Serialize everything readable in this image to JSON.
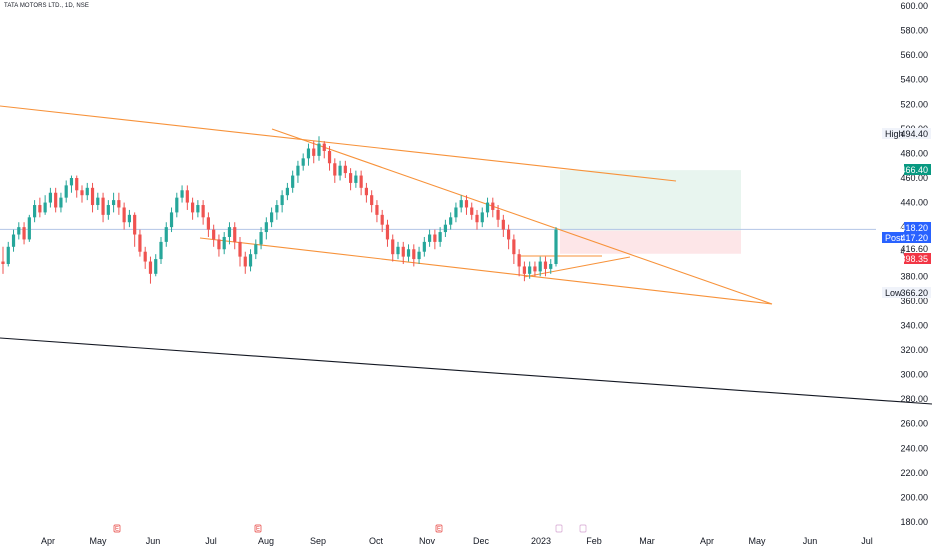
{
  "header": {
    "symbol_title": "TATA MOTORS LTD., 1D, NSE"
  },
  "colors": {
    "up": "#26a69a",
    "down": "#ef5350",
    "trendline": "#f7923a",
    "long_line": "#131722",
    "profit_zone": "#e8f5ef",
    "loss_zone": "#fde6e8",
    "price_line": "#b2c5e6"
  },
  "chart_data": {
    "type": "candlestick",
    "title": "TATA MOTORS LTD., 1D, NSE",
    "ylim": [
      180,
      600
    ],
    "y_ticks": [
      "600.00",
      "580.00",
      "560.00",
      "540.00",
      "520.00",
      "500.00",
      "480.00",
      "460.00",
      "440.00",
      "420.00",
      "400.00",
      "380.00",
      "360.00",
      "340.00",
      "320.00",
      "300.00",
      "280.00",
      "260.00",
      "240.00",
      "220.00",
      "200.00",
      "180.00"
    ],
    "x_labels": [
      "Apr",
      "May",
      "Jun",
      "Jul",
      "Aug",
      "Sep",
      "Oct",
      "Nov",
      "Dec",
      "2023",
      "Feb",
      "Mar",
      "Apr",
      "May",
      "Jun",
      "Jul"
    ],
    "price_tags": [
      {
        "label": "High",
        "value": "494.40",
        "style": "plain"
      },
      {
        "label": "",
        "value": "466.40",
        "style": "green"
      },
      {
        "label": "",
        "value": "418.20",
        "style": "blue"
      },
      {
        "label": "Post",
        "value": "417.20",
        "style": "blue"
      },
      {
        "label": "",
        "value": "416.60",
        "style": "green-text"
      },
      {
        "label": "",
        "value": "398.35",
        "style": "red"
      },
      {
        "label": "Low",
        "value": "366.20",
        "style": "plain"
      }
    ],
    "candles": [
      [
        392,
        390,
        382,
        404
      ],
      [
        390,
        404,
        388,
        408
      ],
      [
        404,
        414,
        400,
        418
      ],
      [
        414,
        420,
        410,
        424
      ],
      [
        420,
        410,
        406,
        424
      ],
      [
        410,
        428,
        408,
        430
      ],
      [
        428,
        438,
        424,
        442
      ],
      [
        438,
        432,
        428,
        444
      ],
      [
        432,
        440,
        430,
        446
      ],
      [
        440,
        448,
        436,
        452
      ],
      [
        448,
        436,
        432,
        452
      ],
      [
        436,
        444,
        432,
        448
      ],
      [
        444,
        454,
        440,
        458
      ],
      [
        454,
        460,
        448,
        462
      ],
      [
        460,
        450,
        444,
        462
      ],
      [
        450,
        446,
        440,
        454
      ],
      [
        446,
        452,
        442,
        456
      ],
      [
        452,
        438,
        432,
        456
      ],
      [
        438,
        444,
        434,
        448
      ],
      [
        444,
        430,
        424,
        448
      ],
      [
        430,
        438,
        426,
        442
      ],
      [
        438,
        442,
        432,
        448
      ],
      [
        442,
        436,
        430,
        448
      ],
      [
        436,
        424,
        418,
        440
      ],
      [
        424,
        430,
        420,
        434
      ],
      [
        430,
        414,
        404,
        432
      ],
      [
        414,
        400,
        396,
        418
      ],
      [
        400,
        392,
        386,
        404
      ],
      [
        392,
        382,
        374,
        396
      ],
      [
        382,
        394,
        380,
        398
      ],
      [
        394,
        408,
        390,
        412
      ],
      [
        408,
        420,
        404,
        424
      ],
      [
        420,
        432,
        416,
        436
      ],
      [
        432,
        444,
        428,
        448
      ],
      [
        444,
        450,
        440,
        454
      ],
      [
        450,
        440,
        434,
        454
      ],
      [
        440,
        432,
        426,
        444
      ],
      [
        432,
        438,
        428,
        442
      ],
      [
        438,
        428,
        422,
        442
      ],
      [
        428,
        418,
        412,
        432
      ],
      [
        418,
        410,
        404,
        422
      ],
      [
        410,
        402,
        396,
        414
      ],
      [
        402,
        412,
        398,
        416
      ],
      [
        412,
        420,
        406,
        424
      ],
      [
        420,
        408,
        402,
        424
      ],
      [
        408,
        396,
        388,
        412
      ],
      [
        396,
        388,
        382,
        400
      ],
      [
        388,
        398,
        384,
        402
      ],
      [
        398,
        406,
        394,
        410
      ],
      [
        406,
        416,
        402,
        420
      ],
      [
        416,
        424,
        410,
        428
      ],
      [
        424,
        432,
        420,
        436
      ],
      [
        432,
        438,
        426,
        442
      ],
      [
        438,
        446,
        432,
        450
      ],
      [
        446,
        452,
        442,
        456
      ],
      [
        452,
        462,
        448,
        466
      ],
      [
        462,
        470,
        456,
        474
      ],
      [
        470,
        476,
        466,
        480
      ],
      [
        476,
        484,
        470,
        488
      ],
      [
        484,
        478,
        472,
        490
      ],
      [
        478,
        488,
        474,
        494
      ],
      [
        488,
        482,
        476,
        490
      ],
      [
        482,
        472,
        466,
        486
      ],
      [
        472,
        462,
        456,
        476
      ],
      [
        462,
        470,
        458,
        474
      ],
      [
        470,
        464,
        460,
        474
      ],
      [
        464,
        456,
        450,
        468
      ],
      [
        456,
        462,
        452,
        466
      ],
      [
        462,
        452,
        446,
        466
      ],
      [
        452,
        446,
        440,
        456
      ],
      [
        446,
        438,
        432,
        450
      ],
      [
        438,
        430,
        424,
        442
      ],
      [
        430,
        422,
        416,
        434
      ],
      [
        422,
        410,
        404,
        426
      ],
      [
        410,
        398,
        392,
        414
      ],
      [
        398,
        404,
        394,
        408
      ],
      [
        404,
        396,
        390,
        408
      ],
      [
        396,
        402,
        392,
        406
      ],
      [
        402,
        394,
        388,
        406
      ],
      [
        394,
        400,
        390,
        404
      ],
      [
        400,
        408,
        396,
        412
      ],
      [
        408,
        414,
        404,
        418
      ],
      [
        414,
        408,
        402,
        418
      ],
      [
        408,
        416,
        404,
        420
      ],
      [
        416,
        422,
        412,
        426
      ],
      [
        422,
        428,
        418,
        432
      ],
      [
        428,
        436,
        424,
        440
      ],
      [
        436,
        442,
        432,
        446
      ],
      [
        442,
        436,
        430,
        446
      ],
      [
        436,
        430,
        426,
        440
      ],
      [
        430,
        424,
        418,
        434
      ],
      [
        424,
        432,
        420,
        436
      ],
      [
        432,
        440,
        428,
        444
      ],
      [
        440,
        434,
        428,
        444
      ],
      [
        434,
        426,
        420,
        438
      ],
      [
        426,
        418,
        412,
        430
      ],
      [
        418,
        410,
        402,
        422
      ],
      [
        410,
        398,
        390,
        414
      ],
      [
        398,
        388,
        380,
        402
      ],
      [
        388,
        382,
        376,
        392
      ],
      [
        382,
        388,
        378,
        392
      ],
      [
        388,
        384,
        380,
        392
      ],
      [
        384,
        392,
        380,
        396
      ],
      [
        392,
        386,
        380,
        396
      ],
      [
        386,
        390,
        382,
        394
      ],
      [
        390,
        418,
        388,
        420
      ]
    ]
  }
}
